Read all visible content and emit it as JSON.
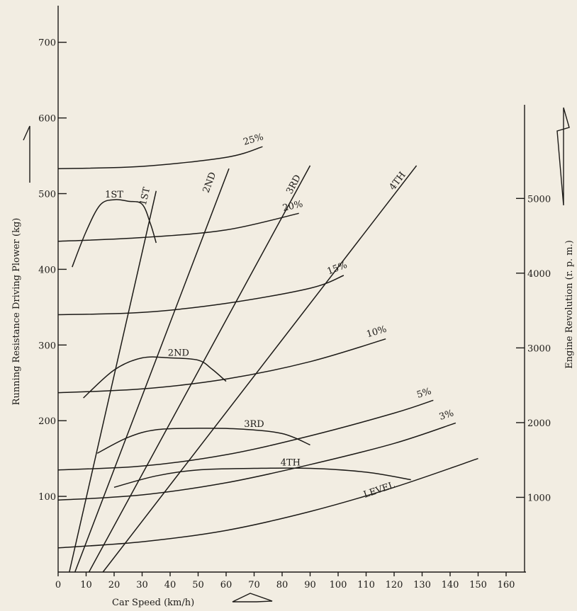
{
  "chart_data": {
    "type": "line",
    "xlabel": "Car Speed (km/h)",
    "ylabel": "Running Resistance Driving Plower (kg)",
    "y2label": "Engine Revolution (r. p. m.)",
    "xlim": [
      0,
      165
    ],
    "ylim": [
      0,
      750
    ],
    "y2lim": [
      0,
      5600
    ],
    "x_ticks": [
      0,
      10,
      20,
      30,
      40,
      50,
      60,
      70,
      80,
      90,
      100,
      110,
      120,
      130,
      140,
      150,
      160
    ],
    "y_ticks": [
      100,
      200,
      300,
      400,
      500,
      600,
      700
    ],
    "y2_ticks": [
      1000,
      2000,
      3000,
      4000,
      5000
    ],
    "grid": false,
    "resistance_curves": [
      {
        "name": "LEVEL",
        "points": [
          [
            0,
            32
          ],
          [
            30,
            40
          ],
          [
            60,
            55
          ],
          [
            90,
            80
          ],
          [
            120,
            112
          ],
          [
            150,
            150
          ]
        ],
        "label_at": [
          115,
          105
        ]
      },
      {
        "name": "3%",
        "points": [
          [
            0,
            95
          ],
          [
            30,
            102
          ],
          [
            60,
            118
          ],
          [
            90,
            142
          ],
          [
            120,
            170
          ],
          [
            142,
            197
          ]
        ],
        "label_at": [
          139,
          204
        ]
      },
      {
        "name": "5%",
        "points": [
          [
            0,
            135
          ],
          [
            30,
            140
          ],
          [
            60,
            155
          ],
          [
            90,
            180
          ],
          [
            120,
            210
          ],
          [
            134,
            227
          ]
        ],
        "label_at": [
          131,
          233
        ]
      },
      {
        "name": "10%",
        "points": [
          [
            0,
            237
          ],
          [
            30,
            242
          ],
          [
            60,
            255
          ],
          [
            90,
            278
          ],
          [
            117,
            308
          ]
        ],
        "label_at": [
          114,
          314
        ]
      },
      {
        "name": "15%",
        "points": [
          [
            0,
            340
          ],
          [
            30,
            343
          ],
          [
            60,
            355
          ],
          [
            90,
            375
          ],
          [
            102,
            392
          ]
        ],
        "label_at": [
          100,
          398
        ]
      },
      {
        "name": "20%",
        "points": [
          [
            0,
            437
          ],
          [
            30,
            442
          ],
          [
            60,
            452
          ],
          [
            86,
            474
          ]
        ],
        "label_at": [
          84,
          480
        ]
      },
      {
        "name": "25%",
        "points": [
          [
            0,
            533
          ],
          [
            30,
            536
          ],
          [
            60,
            548
          ],
          [
            73,
            562
          ]
        ],
        "label_at": [
          70,
          568
        ]
      }
    ],
    "driving_force_curves": [
      {
        "name": "1ST",
        "points": [
          [
            5,
            403
          ],
          [
            10,
            450
          ],
          [
            15,
            485
          ],
          [
            20,
            492
          ],
          [
            25,
            490
          ],
          [
            30,
            486
          ],
          [
            33,
            460
          ],
          [
            35,
            435
          ]
        ],
        "label_at": [
          20,
          495
        ]
      },
      {
        "name": "2ND",
        "points": [
          [
            9,
            230
          ],
          [
            20,
            267
          ],
          [
            30,
            283
          ],
          [
            40,
            283
          ],
          [
            50,
            280
          ],
          [
            55,
            268
          ],
          [
            60,
            252
          ]
        ],
        "label_at": [
          43,
          286
        ]
      },
      {
        "name": "3RD",
        "points": [
          [
            14,
            157
          ],
          [
            25,
            178
          ],
          [
            35,
            188
          ],
          [
            50,
            190
          ],
          [
            65,
            189
          ],
          [
            80,
            183
          ],
          [
            90,
            168
          ]
        ],
        "label_at": [
          70,
          192
        ]
      },
      {
        "name": "4TH",
        "points": [
          [
            20,
            112
          ],
          [
            35,
            127
          ],
          [
            50,
            135
          ],
          [
            70,
            137
          ],
          [
            90,
            137
          ],
          [
            110,
            132
          ],
          [
            126,
            122
          ]
        ],
        "label_at": [
          83,
          141
        ]
      }
    ],
    "gear_lines": [
      {
        "name": "1ST",
        "points": [
          [
            4,
            0
          ],
          [
            35,
            5100
          ]
        ],
        "label_at": [
          32,
          5020
        ]
      },
      {
        "name": "2ND",
        "points": [
          [
            6,
            0
          ],
          [
            61,
            5400
          ]
        ],
        "label_at": [
          55,
          5200
        ]
      },
      {
        "name": "3RD",
        "points": [
          [
            11,
            0
          ],
          [
            90,
            5440
          ]
        ],
        "label_at": [
          85,
          5170
        ]
      },
      {
        "name": "4TH",
        "points": [
          [
            16,
            0
          ],
          [
            128,
            5440
          ]
        ],
        "label_at": [
          122,
          5210
        ]
      }
    ]
  }
}
